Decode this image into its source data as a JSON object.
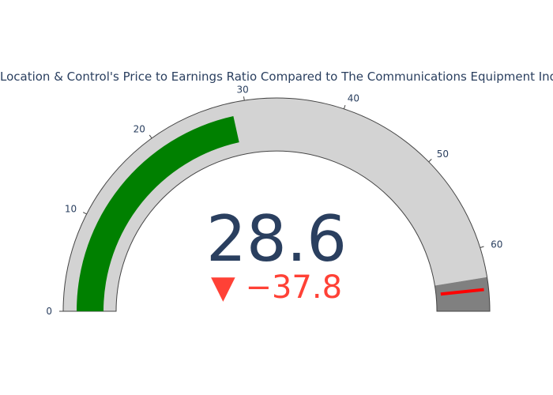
{
  "chart_data": {
    "type": "gauge",
    "title": "Location & Control's Price to Earnings Ratio Compared to The Communications Equipment Industry",
    "value": 28.6,
    "value_text": "28.6",
    "delta": {
      "text": "−37.8",
      "value": -37.8,
      "symbol": "▼",
      "color": "#ff4136"
    },
    "axis": {
      "range": [
        0,
        66.4
      ],
      "ticks": [
        0,
        10,
        20,
        30,
        40,
        50,
        60
      ],
      "tick_labels": [
        "0",
        "10",
        "20",
        "30",
        "40",
        "50",
        "60"
      ]
    },
    "bar": {
      "value": 28.6,
      "color": "#008000"
    },
    "steps": [
      {
        "range": [
          0,
          63
        ],
        "color": "#d3d3d3"
      },
      {
        "range": [
          63,
          66.4
        ],
        "color": "#808080"
      }
    ],
    "threshold": {
      "value": 64.2,
      "color": "#ff0000"
    }
  }
}
